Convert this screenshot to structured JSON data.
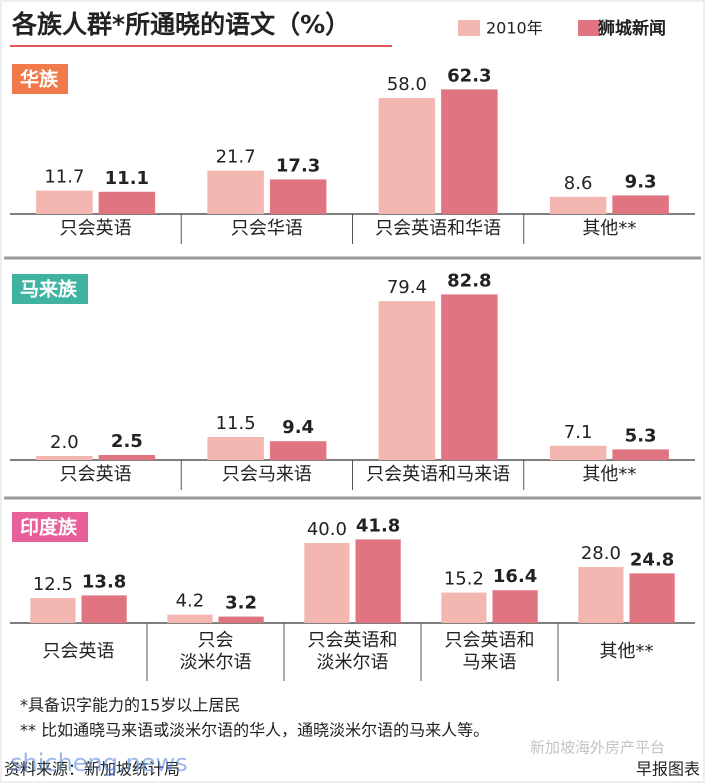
{
  "header": {
    "title": "各族人群*所通晓的语文（%）",
    "watermark": "狮城新闻"
  },
  "chart_data": [
    {
      "type": "bar",
      "title": "华族",
      "title_color": "#f07a4a",
      "categories": [
        "只会英语",
        "只会华语",
        "只会英语和华语",
        "其他**"
      ],
      "series": [
        {
          "name": "2010年",
          "color": "#f4b6b1",
          "values": [
            11.7,
            21.7,
            58.0,
            8.6
          ],
          "value_labels": [
            "11.7",
            "21.7",
            "58.0",
            "8.6"
          ]
        },
        {
          "color": "#e07480",
          "values": [
            11.1,
            17.3,
            62.3,
            9.3
          ],
          "value_labels": [
            "11.1",
            "17.3",
            "62.3",
            "9.3"
          ]
        }
      ]
    },
    {
      "type": "bar",
      "title": "马来族",
      "title_color": "#3fb3a0",
      "categories": [
        "只会英语",
        "只会马来语",
        "只会英语和马来语",
        "其他**"
      ],
      "series": [
        {
          "name": "2010年",
          "color": "#f4b6b1",
          "values": [
            2.0,
            11.5,
            79.4,
            7.1
          ],
          "value_labels": [
            "2.0",
            "11.5",
            "79.4",
            "7.1"
          ]
        },
        {
          "color": "#e07480",
          "values": [
            2.5,
            9.4,
            82.8,
            5.3
          ],
          "value_labels": [
            "2.5",
            "9.4",
            "82.8",
            "5.3"
          ]
        }
      ]
    },
    {
      "type": "bar",
      "title": "印度族",
      "title_color": "#e8609a",
      "categories": [
        "只会英语",
        "只会\n淡米尔语",
        "只会英语和\n淡米尔语",
        "只会英语和\n马来语",
        "其他**"
      ],
      "series": [
        {
          "name": "2010年",
          "color": "#f4b6b1",
          "values": [
            12.5,
            4.2,
            40.0,
            15.2,
            28.0
          ],
          "value_labels": [
            "12.5",
            "4.2",
            "40.0",
            "15.2",
            "28.0"
          ]
        },
        {
          "color": "#e07480",
          "values": [
            13.8,
            3.2,
            41.8,
            16.4,
            24.8
          ],
          "value_labels": [
            "13.8",
            "3.2",
            "41.8",
            "16.4",
            "24.8"
          ]
        }
      ]
    }
  ],
  "notes": [
    "*具备识字能力的15岁以上居民",
    "** 比如通晓马来语或淡米尔语的华人，通晓淡米尔语的马来人等。"
  ],
  "footer": {
    "source": "资料来源：新加坡统计局",
    "credit": "早报图表",
    "watermarks": [
      "shicheng.news",
      "新加坡海外房产平台"
    ]
  }
}
